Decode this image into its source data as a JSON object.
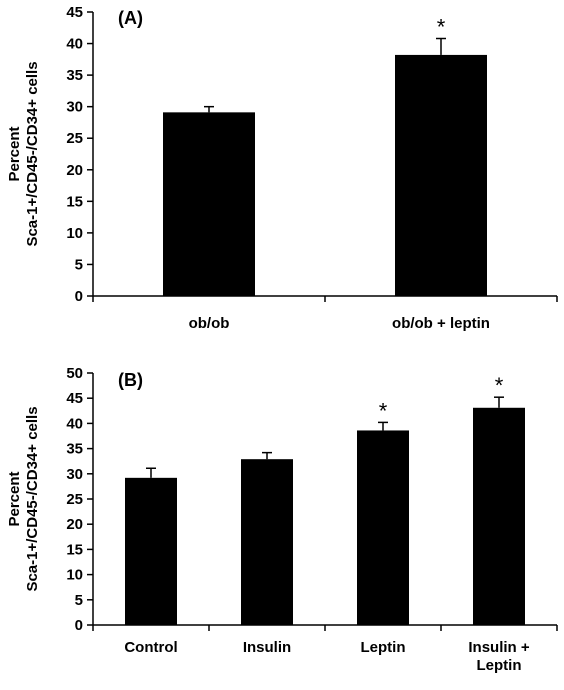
{
  "chart_data": [
    {
      "type": "bar",
      "panel_label": "(A)",
      "ylabel_line1": "Percent",
      "ylabel_line2": "Sca-1+/CD45-/CD34+ cells",
      "categories": [
        "ob/ob",
        "ob/ob + leptin"
      ],
      "values": [
        29.1,
        38.2
      ],
      "errors": [
        0.9,
        2.6
      ],
      "significance": [
        "",
        "*"
      ],
      "ylim": [
        0,
        45
      ],
      "yticks": [
        0,
        5,
        10,
        15,
        20,
        25,
        30,
        35,
        40,
        45
      ],
      "bar_color": "#000000",
      "grid": false,
      "legend": "none"
    },
    {
      "type": "bar",
      "panel_label": "(B)",
      "ylabel_line1": "Percent",
      "ylabel_line2": "Sca-1+/CD45-/CD34+ cells",
      "categories": [
        "Control",
        "Insulin",
        "Leptin",
        "Insulin +\nLeptin"
      ],
      "values": [
        29.2,
        32.9,
        38.6,
        43.1
      ],
      "errors": [
        1.9,
        1.3,
        1.6,
        2.1
      ],
      "significance": [
        "",
        "",
        "*",
        "*"
      ],
      "ylim": [
        0,
        50
      ],
      "yticks": [
        0,
        5,
        10,
        15,
        20,
        25,
        30,
        35,
        40,
        45,
        50
      ],
      "bar_color": "#000000",
      "grid": false,
      "legend": "none"
    }
  ]
}
